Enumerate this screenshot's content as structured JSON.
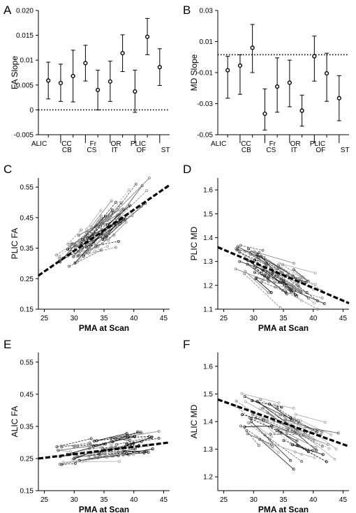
{
  "chart_data": [
    {
      "panel_label": "A",
      "type": "scatter",
      "subtype": "errorbar",
      "ylabel": "FA Slope",
      "xlabel": "",
      "ylim": [
        -0.005,
        0.02
      ],
      "yticks": [
        -0.005,
        0,
        0.005,
        0.01,
        0.015,
        0.02
      ],
      "ytick_labels": [
        "-0.005",
        "0",
        "0.005",
        "0.01",
        "0.015",
        "0.020"
      ],
      "categories": [
        "ALIC",
        "CB",
        "CC",
        "CS",
        "Fr",
        "IT",
        "OR",
        "OF",
        "PLIC",
        "ST"
      ],
      "values": [
        0.0059,
        0.0054,
        0.0068,
        0.0094,
        0.004,
        0.0057,
        0.0114,
        0.0037,
        0.0147,
        0.0086
      ],
      "err_low": [
        0.0022,
        0.0017,
        0.0016,
        0.0058,
        0.0,
        0.0017,
        0.0077,
        -0.0005,
        0.0111,
        0.0049
      ],
      "err_high": [
        0.0096,
        0.0092,
        0.012,
        0.013,
        0.008,
        0.0098,
        0.0151,
        0.008,
        0.0184,
        0.0123
      ],
      "reference_line": 0,
      "grid": false
    },
    {
      "panel_label": "B",
      "type": "scatter",
      "subtype": "errorbar",
      "ylabel": "MD Slope",
      "xlabel": "",
      "ylim": [
        -0.05,
        0.03
      ],
      "yticks": [
        -0.05,
        -0.03,
        -0.01,
        0.01,
        0.03
      ],
      "ytick_labels": [
        "-0.05",
        "-0.03",
        "-0.01",
        "0.01",
        "0.03"
      ],
      "categories": [
        "ALIC",
        "CB",
        "CC",
        "CS",
        "Fr",
        "IT",
        "OR",
        "OF",
        "PLIC",
        "ST"
      ],
      "values": [
        -0.0085,
        -0.0055,
        0.006,
        -0.0365,
        -0.019,
        -0.0165,
        -0.0345,
        0.0005,
        -0.0105,
        -0.0265
      ],
      "err_low": [
        -0.0265,
        -0.024,
        -0.01,
        -0.047,
        -0.0355,
        -0.032,
        -0.0445,
        -0.0155,
        -0.0285,
        -0.041
      ],
      "err_high": [
        0.0005,
        0.0015,
        0.021,
        -0.0205,
        -0.0005,
        -0.002,
        -0.0245,
        0.0135,
        0.0025,
        -0.012
      ],
      "reference_line": 0.0015,
      "grid": false
    },
    {
      "panel_label": "C",
      "type": "scatter",
      "subtype": "spaghetti-with-regression",
      "xlabel": "PMA at Scan",
      "ylabel": "PLIC FA",
      "xlim": [
        24,
        46
      ],
      "ylim": [
        0.15,
        0.58
      ],
      "xticks": [
        25,
        30,
        35,
        40,
        45
      ],
      "yticks": [
        0.15,
        0.25,
        0.35,
        0.45,
        0.55
      ],
      "ytick_labels": [
        "0.15",
        "0.25",
        "0.35",
        "0.45",
        "0.55"
      ],
      "regression_line": {
        "x": [
          24,
          46
        ],
        "y": [
          0.26,
          0.557
        ]
      },
      "cloud": {
        "x_range": [
          27,
          39
        ],
        "trend_start": 0.305,
        "trend_slope": 0.0125,
        "spread": 0.045
      }
    },
    {
      "panel_label": "D",
      "type": "scatter",
      "subtype": "spaghetti-with-regression",
      "xlabel": "PMA at Scan",
      "ylabel": "PLIC MD",
      "xlim": [
        24,
        46
      ],
      "ylim": [
        1.1,
        1.65
      ],
      "xticks": [
        25,
        30,
        35,
        40,
        45
      ],
      "yticks": [
        1.1,
        1.2,
        1.3,
        1.4,
        1.5,
        1.6
      ],
      "ytick_labels": [
        "1.1",
        "1.2",
        "1.3",
        "1.4",
        "1.5",
        "1.6"
      ],
      "regression_line": {
        "x": [
          24,
          46
        ],
        "y": [
          1.36,
          1.125
        ]
      },
      "cloud": {
        "x_range": [
          27,
          40
        ],
        "trend_start": 1.32,
        "trend_slope": -0.011,
        "spread": 0.06
      }
    },
    {
      "panel_label": "E",
      "type": "scatter",
      "subtype": "spaghetti-with-regression",
      "xlabel": "PMA at Scan",
      "ylabel": "ALIC FA",
      "xlim": [
        24,
        46
      ],
      "ylim": [
        0.15,
        0.58
      ],
      "xticks": [
        25,
        30,
        35,
        40,
        45
      ],
      "yticks": [
        0.15,
        0.25,
        0.35,
        0.45,
        0.55
      ],
      "ytick_labels": [
        "0.15",
        "0.25",
        "0.35",
        "0.45",
        "0.55"
      ],
      "regression_line": {
        "x": [
          24,
          46
        ],
        "y": [
          0.25,
          0.3
        ]
      },
      "cloud": {
        "x_range": [
          27,
          42
        ],
        "trend_start": 0.258,
        "trend_slope": 0.0025,
        "spread": 0.035
      }
    },
    {
      "panel_label": "F",
      "type": "scatter",
      "subtype": "spaghetti-with-regression",
      "xlabel": "PMA at Scan",
      "ylabel": "ALIC MD",
      "xlim": [
        24,
        46
      ],
      "ylim": [
        1.15,
        1.65
      ],
      "xticks": [
        25,
        30,
        35,
        40,
        45
      ],
      "yticks": [
        1.2,
        1.3,
        1.4,
        1.5,
        1.6
      ],
      "ytick_labels": [
        "1.2",
        "1.3",
        "1.4",
        "1.5",
        "1.6"
      ],
      "regression_line": {
        "x": [
          24,
          46
        ],
        "y": [
          1.48,
          1.31
        ]
      },
      "cloud": {
        "x_range": [
          27,
          42
        ],
        "trend_start": 1.445,
        "trend_slope": -0.0085,
        "spread": 0.075
      }
    }
  ],
  "colors": {
    "ink": "#000000",
    "series_palette": [
      "#111111",
      "#3a3a3a",
      "#666666",
      "#8c8c8c",
      "#b0b0b0"
    ]
  }
}
